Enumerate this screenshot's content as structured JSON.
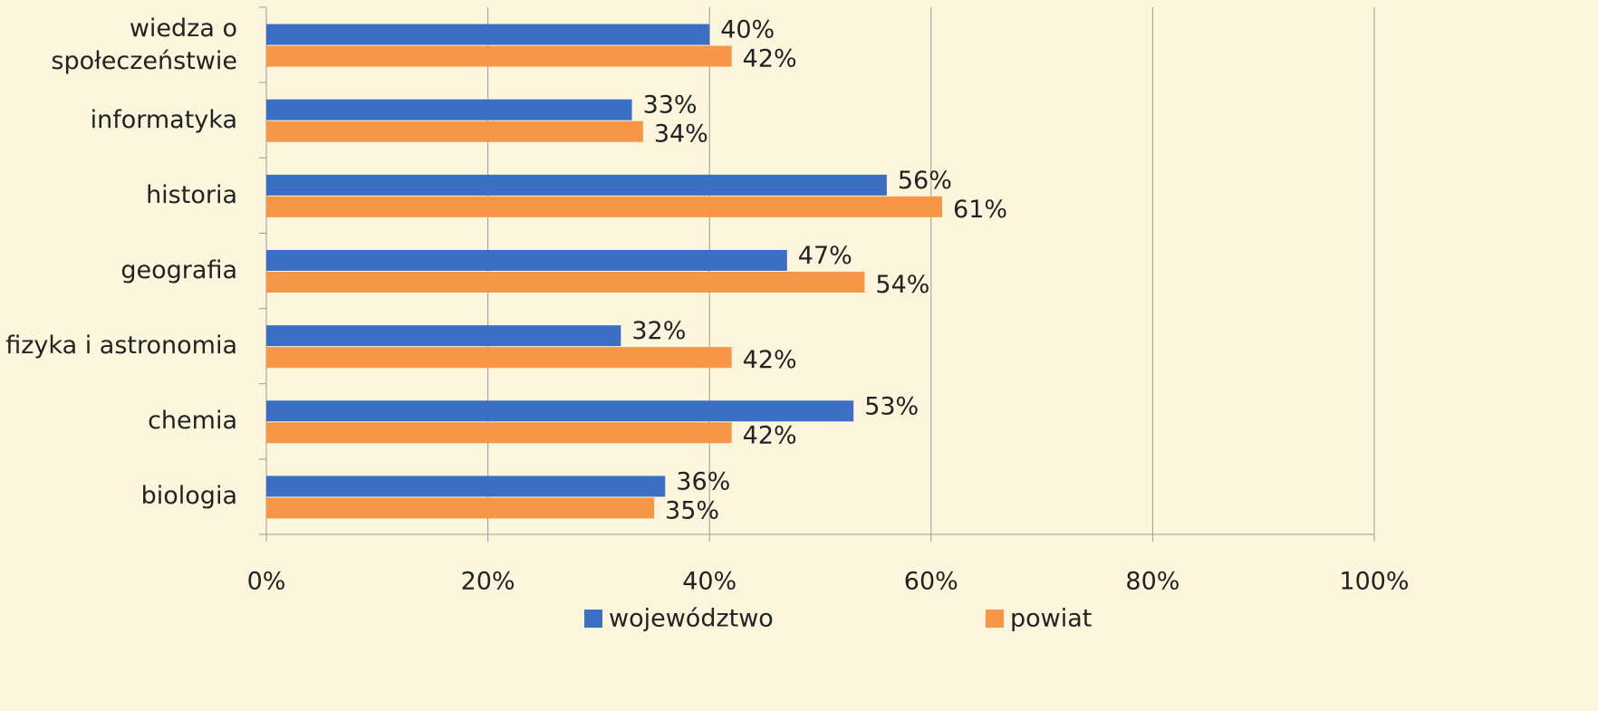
{
  "chart_data": {
    "type": "bar",
    "orientation": "horizontal",
    "categories": [
      "wiedza o społeczeństwie",
      "informatyka",
      "historia",
      "geografia",
      "fizyka i astronomia",
      "chemia",
      "biologia"
    ],
    "series": [
      {
        "name": "województwo",
        "color": "#3b6fc3",
        "values": [
          40,
          33,
          56,
          47,
          32,
          53,
          36
        ],
        "value_labels": [
          "40%",
          "33%",
          "56%",
          "47%",
          "32%",
          "53%",
          "36%"
        ]
      },
      {
        "name": "powiat",
        "color": "#f79646",
        "values": [
          42,
          34,
          61,
          54,
          42,
          42,
          35
        ],
        "value_labels": [
          "42%",
          "34%",
          "61%",
          "54%",
          "42%",
          "42%",
          "35%"
        ]
      }
    ],
    "xlim": [
      0,
      100
    ],
    "xticks": [
      {
        "value": 0,
        "label": "0%"
      },
      {
        "value": 20,
        "label": "20%"
      },
      {
        "value": 40,
        "label": "40%"
      },
      {
        "value": 60,
        "label": "60%"
      },
      {
        "value": 80,
        "label": "80%"
      },
      {
        "value": 100,
        "label": "100%"
      }
    ],
    "grid": true,
    "legend": "bottom"
  }
}
